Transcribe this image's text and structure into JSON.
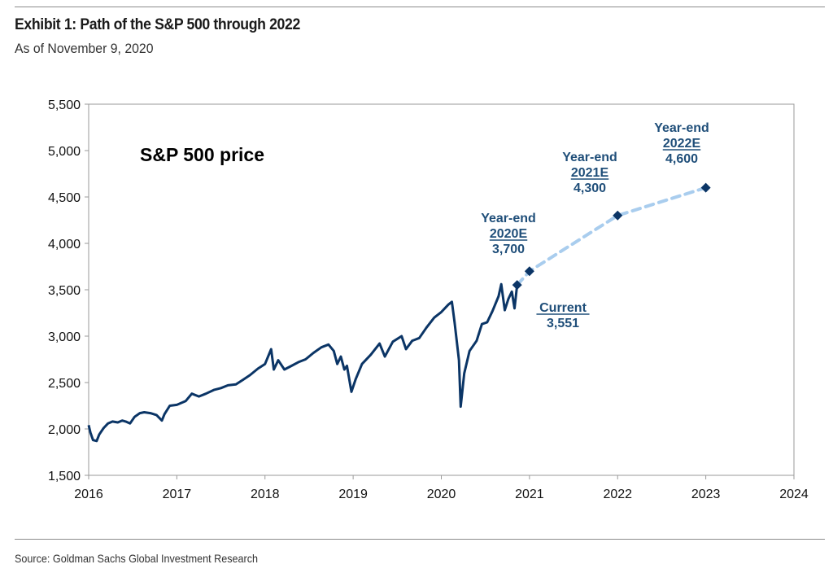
{
  "header": {
    "title": "Exhibit 1: Path of the S&P 500 through 2022",
    "subtitle": "As of November 9, 2020"
  },
  "footer": {
    "source": "Source: Goldman Sachs Global Investment Research"
  },
  "colors": {
    "history_line": "#0b3566",
    "forecast_line": "#a9cdee",
    "marker": "#0b3566",
    "annotation": "#1f4e79"
  },
  "chart_data": {
    "type": "line",
    "title": "S&P 500 price",
    "xlabel": "",
    "ylabel": "",
    "xlim": [
      2016,
      2024
    ],
    "ylim": [
      1500,
      5500
    ],
    "x_ticks": [
      2016,
      2017,
      2018,
      2019,
      2020,
      2021,
      2022,
      2023,
      2024
    ],
    "x_tick_labels": [
      "2016",
      "2017",
      "2018",
      "2019",
      "2020",
      "2021",
      "2022",
      "2023",
      "2024"
    ],
    "y_ticks": [
      1500,
      2000,
      2500,
      3000,
      3500,
      4000,
      4500,
      5000,
      5500
    ],
    "y_tick_labels": [
      "1,500",
      "2,000",
      "2,500",
      "3,000",
      "3,500",
      "4,000",
      "4,500",
      "5,000",
      "5,500"
    ],
    "grid": false,
    "series": [
      {
        "style": "solid",
        "points": [
          [
            2016.0,
            2040
          ],
          [
            2016.02,
            1960
          ],
          [
            2016.05,
            1880
          ],
          [
            2016.09,
            1870
          ],
          [
            2016.12,
            1940
          ],
          [
            2016.17,
            2010
          ],
          [
            2016.22,
            2060
          ],
          [
            2016.27,
            2080
          ],
          [
            2016.33,
            2070
          ],
          [
            2016.38,
            2090
          ],
          [
            2016.42,
            2080
          ],
          [
            2016.47,
            2060
          ],
          [
            2016.52,
            2130
          ],
          [
            2016.58,
            2170
          ],
          [
            2016.63,
            2180
          ],
          [
            2016.7,
            2170
          ],
          [
            2016.77,
            2150
          ],
          [
            2016.83,
            2090
          ],
          [
            2016.86,
            2160
          ],
          [
            2016.92,
            2250
          ],
          [
            2017.0,
            2260
          ],
          [
            2017.1,
            2300
          ],
          [
            2017.17,
            2380
          ],
          [
            2017.25,
            2350
          ],
          [
            2017.33,
            2380
          ],
          [
            2017.42,
            2420
          ],
          [
            2017.5,
            2440
          ],
          [
            2017.58,
            2470
          ],
          [
            2017.67,
            2480
          ],
          [
            2017.75,
            2530
          ],
          [
            2017.83,
            2580
          ],
          [
            2017.92,
            2650
          ],
          [
            2018.0,
            2700
          ],
          [
            2018.07,
            2860
          ],
          [
            2018.1,
            2640
          ],
          [
            2018.15,
            2740
          ],
          [
            2018.22,
            2640
          ],
          [
            2018.3,
            2680
          ],
          [
            2018.38,
            2720
          ],
          [
            2018.46,
            2750
          ],
          [
            2018.55,
            2820
          ],
          [
            2018.64,
            2880
          ],
          [
            2018.72,
            2910
          ],
          [
            2018.78,
            2840
          ],
          [
            2018.82,
            2700
          ],
          [
            2018.86,
            2780
          ],
          [
            2018.9,
            2640
          ],
          [
            2018.93,
            2680
          ],
          [
            2018.98,
            2400
          ],
          [
            2019.03,
            2540
          ],
          [
            2019.1,
            2700
          ],
          [
            2019.2,
            2800
          ],
          [
            2019.3,
            2920
          ],
          [
            2019.36,
            2780
          ],
          [
            2019.45,
            2940
          ],
          [
            2019.55,
            3000
          ],
          [
            2019.6,
            2860
          ],
          [
            2019.67,
            2950
          ],
          [
            2019.75,
            2980
          ],
          [
            2019.83,
            3090
          ],
          [
            2019.92,
            3200
          ],
          [
            2020.0,
            3260
          ],
          [
            2020.08,
            3340
          ],
          [
            2020.12,
            3370
          ],
          [
            2020.15,
            3150
          ],
          [
            2020.2,
            2740
          ],
          [
            2020.22,
            2240
          ],
          [
            2020.26,
            2600
          ],
          [
            2020.32,
            2840
          ],
          [
            2020.4,
            2950
          ],
          [
            2020.46,
            3130
          ],
          [
            2020.52,
            3150
          ],
          [
            2020.58,
            3270
          ],
          [
            2020.65,
            3430
          ],
          [
            2020.68,
            3560
          ],
          [
            2020.72,
            3280
          ],
          [
            2020.76,
            3400
          ],
          [
            2020.8,
            3480
          ],
          [
            2020.83,
            3300
          ],
          [
            2020.86,
            3551
          ]
        ]
      },
      {
        "style": "dashed",
        "points": [
          [
            2020.86,
            3551
          ],
          [
            2021.0,
            3700
          ],
          [
            2022.0,
            4300
          ],
          [
            2023.0,
            4600
          ]
        ]
      }
    ],
    "markers": [
      {
        "x": 2020.86,
        "y": 3551
      },
      {
        "x": 2021.0,
        "y": 3700
      },
      {
        "x": 2022.0,
        "y": 4300
      },
      {
        "x": 2023.0,
        "y": 4600
      }
    ],
    "annotations": [
      {
        "id": "current",
        "lines": [
          "Current",
          "3,551"
        ],
        "underline_line": 0
      },
      {
        "id": "ye2020",
        "lines": [
          "Year-end",
          "2020E",
          "3,700"
        ],
        "underline_line": 1
      },
      {
        "id": "ye2021",
        "lines": [
          "Year-end",
          "2021E",
          "4,300"
        ],
        "underline_line": 1
      },
      {
        "id": "ye2022",
        "lines": [
          "Year-end",
          "2022E",
          "4,600"
        ],
        "underline_line": 1
      }
    ]
  }
}
